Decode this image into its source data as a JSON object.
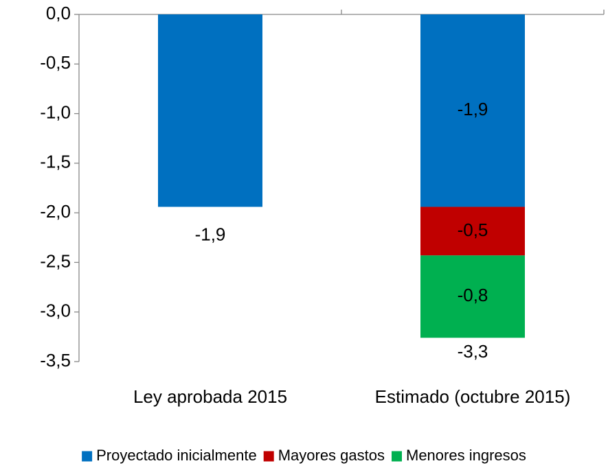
{
  "chart_data": {
    "type": "stacked_bar",
    "categories": [
      "Ley aprobada 2015",
      "Estimado (octubre 2015)"
    ],
    "series": [
      {
        "name": "Proyectado inicialmente",
        "color": "#0070c0",
        "values": [
          -1.94,
          -1.94
        ],
        "value_labels": [
          "-1,9",
          "-1,9"
        ]
      },
      {
        "name": "Mayores gastos",
        "color": "#c00000",
        "values": [
          null,
          -0.49
        ],
        "value_labels": [
          null,
          "-0,5"
        ]
      },
      {
        "name": "Menores ingresos",
        "color": "#00b050",
        "values": [
          null,
          -0.83
        ],
        "value_labels": [
          null,
          "-0,8"
        ]
      }
    ],
    "totals": [
      null,
      -3.26
    ],
    "total_labels": [
      null,
      "-3,3"
    ],
    "ylim": [
      -3.5,
      0
    ],
    "yticks": [
      {
        "value": 0,
        "label": "0,0"
      },
      {
        "value": -0.5,
        "label": "-0,5"
      },
      {
        "value": -1,
        "label": "-1,0"
      },
      {
        "value": -1.5,
        "label": "-1,5"
      },
      {
        "value": -2,
        "label": "-2,0"
      },
      {
        "value": -2.5,
        "label": "-2,5"
      },
      {
        "value": -3,
        "label": "-3,0"
      },
      {
        "value": -3.5,
        "label": "-3,5"
      }
    ],
    "legend": "bottom"
  }
}
